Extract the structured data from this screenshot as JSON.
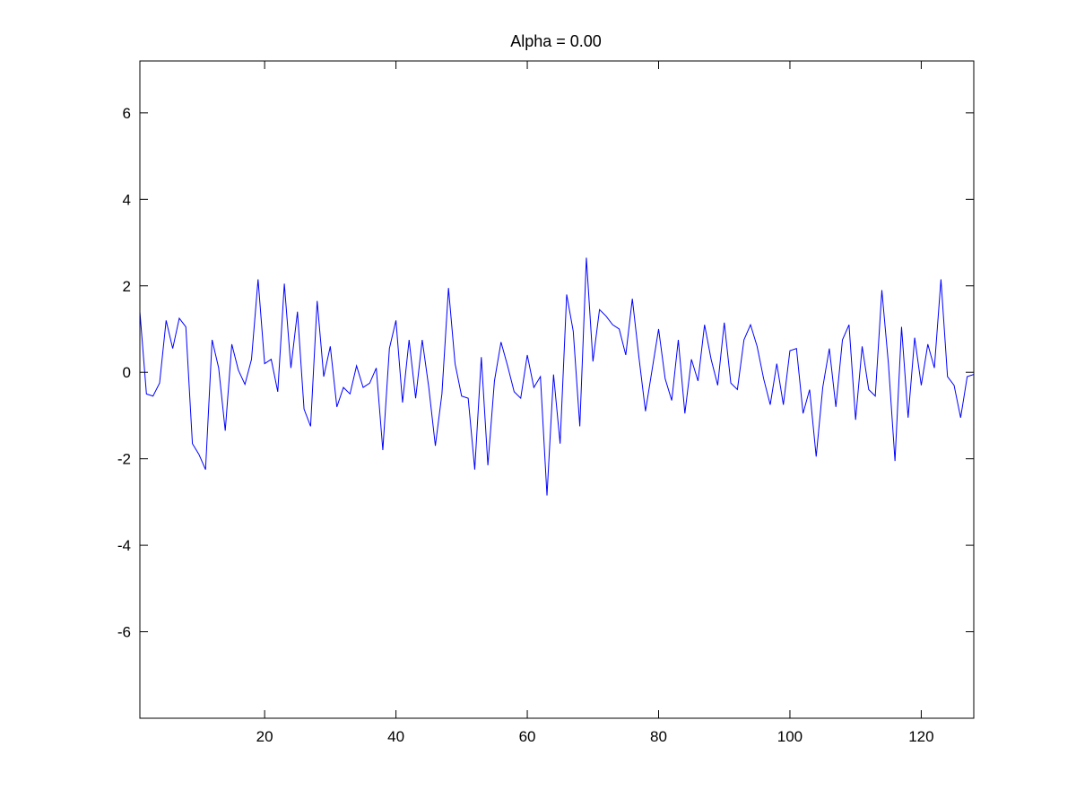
{
  "chart_data": {
    "type": "line",
    "title": "Alpha = 0.00",
    "xlabel": "",
    "ylabel": "",
    "xlim": [
      1,
      128
    ],
    "ylim": [
      -8,
      7.2
    ],
    "xticks": [
      20,
      40,
      60,
      80,
      100,
      120
    ],
    "xtick_labels": [
      "20",
      "40",
      "60",
      "80",
      "100",
      "120"
    ],
    "yticks": [
      -6,
      -4,
      -2,
      0,
      2,
      4,
      6
    ],
    "ytick_labels": [
      "-6",
      "-4",
      "-2",
      "0",
      "2",
      "4",
      "6"
    ],
    "grid": false,
    "legend": "none",
    "colors": {
      "line": "#0000ff",
      "axes": "#000000",
      "background": "#ffffff"
    },
    "series": [
      {
        "x": [
          1,
          2,
          3,
          4,
          5,
          6,
          7,
          8,
          9,
          10,
          11,
          12,
          13,
          14,
          15,
          16,
          17,
          18,
          19,
          20,
          21,
          22,
          23,
          24,
          25,
          26,
          27,
          28,
          29,
          30,
          31,
          32,
          33,
          34,
          35,
          36,
          37,
          38,
          39,
          40,
          41,
          42,
          43,
          44,
          45,
          46,
          47,
          48,
          49,
          50,
          51,
          52,
          53,
          54,
          55,
          56,
          57,
          58,
          59,
          60,
          61,
          62,
          63,
          64,
          65,
          66,
          67,
          68,
          69,
          70,
          71,
          72,
          73,
          74,
          75,
          76,
          77,
          78,
          79,
          80,
          81,
          82,
          83,
          84,
          85,
          86,
          87,
          88,
          89,
          90,
          91,
          92,
          93,
          94,
          95,
          96,
          97,
          98,
          99,
          100,
          101,
          102,
          103,
          104,
          105,
          106,
          107,
          108,
          109,
          110,
          111,
          112,
          113,
          114,
          115,
          116,
          117,
          118,
          119,
          120,
          121,
          122,
          123,
          124,
          125,
          126,
          127,
          128
        ],
        "values": [
          1.4,
          -0.5,
          -0.55,
          -0.25,
          1.2,
          0.55,
          1.25,
          1.05,
          -1.65,
          -1.9,
          -2.25,
          0.75,
          0.1,
          -1.35,
          0.65,
          0.05,
          -0.28,
          0.3,
          2.15,
          0.2,
          0.3,
          -0.45,
          2.05,
          0.1,
          1.4,
          -0.85,
          -1.25,
          1.65,
          -0.1,
          0.6,
          -0.8,
          -0.35,
          -0.5,
          0.15,
          -0.35,
          -0.25,
          0.1,
          -1.8,
          0.55,
          1.2,
          -0.7,
          0.75,
          -0.6,
          0.75,
          -0.35,
          -1.7,
          -0.5,
          1.95,
          0.2,
          -0.55,
          -0.6,
          -2.25,
          0.35,
          -2.15,
          -0.2,
          0.7,
          0.15,
          -0.45,
          -0.6,
          0.4,
          -0.35,
          -0.1,
          -2.85,
          -0.05,
          -1.65,
          1.8,
          0.95,
          -1.25,
          2.65,
          0.25,
          1.45,
          1.3,
          1.1,
          1.0,
          0.4,
          1.7,
          0.35,
          -0.9,
          0.05,
          1.0,
          -0.15,
          -0.65,
          0.75,
          -0.95,
          0.3,
          -0.2,
          1.1,
          0.3,
          -0.3,
          1.15,
          -0.25,
          -0.4,
          0.75,
          1.1,
          0.6,
          -0.15,
          -0.75,
          0.2,
          -0.75,
          0.5,
          0.55,
          -0.95,
          -0.4,
          -1.95,
          -0.35,
          0.55,
          -0.8,
          0.75,
          1.1,
          -1.1,
          0.6,
          -0.4,
          -0.55,
          1.9,
          0.2,
          -2.05,
          1.05,
          -1.05,
          0.8,
          -0.3,
          0.65,
          0.1,
          2.15,
          -0.1,
          -0.3,
          -1.05,
          -0.1,
          -0.05
        ]
      }
    ]
  }
}
